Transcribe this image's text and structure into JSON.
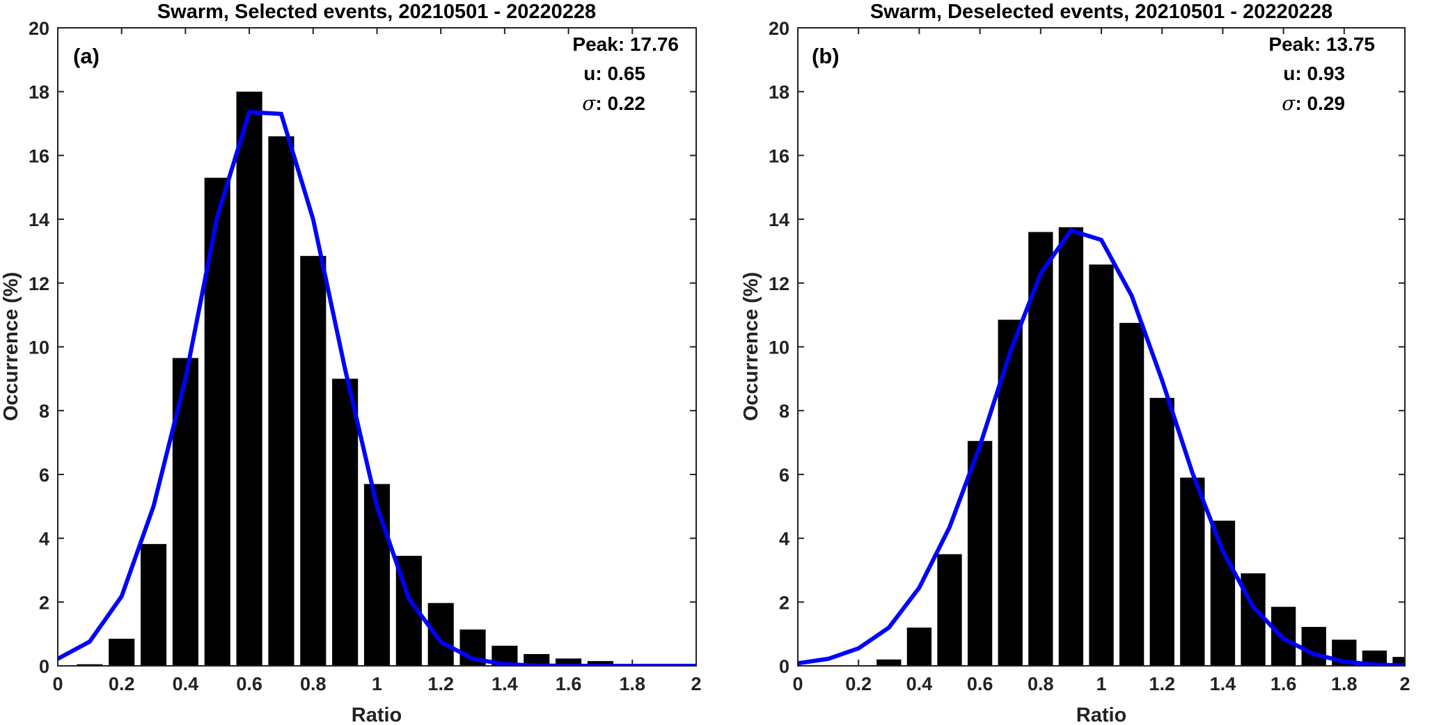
{
  "chart_data": [
    {
      "type": "bar",
      "panel": "(a)",
      "title": "Swarm, Selected events, 20210501 - 20220228",
      "xlabel": "Ratio",
      "ylabel": "Occurrence (%)",
      "xlim": [
        0,
        2
      ],
      "ylim": [
        0,
        20
      ],
      "xticks": [
        "0",
        "0.2",
        "0.4",
        "0.6",
        "0.8",
        "1",
        "1.2",
        "1.4",
        "1.6",
        "1.8",
        "2"
      ],
      "yticks": [
        "0",
        "2",
        "4",
        "6",
        "8",
        "10",
        "12",
        "14",
        "16",
        "18",
        "20"
      ],
      "stats": {
        "peak": "Peak: 17.76",
        "mu": "u: 0.65",
        "sigma_symbol": "σ",
        "sigma": ": 0.22"
      },
      "bar_color": "#000000",
      "fit_color": "#0000ff",
      "bars": {
        "x": [
          0.1,
          0.2,
          0.3,
          0.4,
          0.5,
          0.6,
          0.7,
          0.8,
          0.9,
          1.0,
          1.1,
          1.2,
          1.3,
          1.4,
          1.5,
          1.6,
          1.7,
          1.8,
          1.9
        ],
        "values": [
          0.05,
          0.85,
          3.82,
          9.65,
          15.3,
          18.0,
          16.6,
          12.85,
          9.0,
          5.7,
          3.45,
          1.97,
          1.14,
          0.63,
          0.37,
          0.23,
          0.15,
          0.04,
          0.02
        ]
      },
      "fit": {
        "x": [
          0,
          0.1,
          0.2,
          0.3,
          0.4,
          0.5,
          0.6,
          0.7,
          0.8,
          0.9,
          1.0,
          1.1,
          1.2,
          1.3,
          1.4,
          1.5,
          1.6,
          1.7,
          1.8,
          1.9,
          2.0
        ],
        "values": [
          0.22,
          0.76,
          2.18,
          5.0,
          9.0,
          14.1,
          17.36,
          17.3,
          14.0,
          9.3,
          5.0,
          2.1,
          0.75,
          0.22,
          0.05,
          0.01,
          0,
          0,
          0,
          0,
          0
        ]
      }
    },
    {
      "type": "bar",
      "panel": "(b)",
      "title": "Swarm, Deselected events, 20210501 - 20220228",
      "xlabel": "Ratio",
      "ylabel": "Occurrence (%)",
      "xlim": [
        0,
        2
      ],
      "ylim": [
        0,
        20
      ],
      "xticks": [
        "0",
        "0.2",
        "0.4",
        "0.6",
        "0.8",
        "1",
        "1.2",
        "1.4",
        "1.6",
        "1.8",
        "2"
      ],
      "yticks": [
        "0",
        "2",
        "4",
        "6",
        "8",
        "10",
        "12",
        "14",
        "16",
        "18",
        "20"
      ],
      "stats": {
        "peak": "Peak: 13.75",
        "mu": "u: 0.93",
        "sigma_symbol": "σ",
        "sigma": ": 0.29"
      },
      "bar_color": "#000000",
      "fit_color": "#0000ff",
      "bars": {
        "x": [
          0.3,
          0.4,
          0.5,
          0.6,
          0.7,
          0.8,
          0.9,
          1.0,
          1.1,
          1.2,
          1.3,
          1.4,
          1.5,
          1.6,
          1.7,
          1.8,
          1.9,
          2.0
        ],
        "values": [
          0.2,
          1.2,
          3.5,
          7.05,
          10.85,
          13.6,
          13.75,
          12.58,
          10.75,
          8.4,
          5.9,
          4.55,
          2.9,
          1.85,
          1.22,
          0.82,
          0.48,
          0.28
        ]
      },
      "fit": {
        "x": [
          0,
          0.1,
          0.2,
          0.3,
          0.4,
          0.5,
          0.6,
          0.7,
          0.8,
          0.9,
          1.0,
          1.1,
          1.2,
          1.3,
          1.4,
          1.5,
          1.6,
          1.7,
          1.8,
          1.9,
          2.0
        ],
        "values": [
          0.08,
          0.22,
          0.55,
          1.2,
          2.45,
          4.35,
          6.9,
          9.85,
          12.3,
          13.65,
          13.35,
          11.6,
          8.95,
          6.05,
          3.6,
          1.85,
          0.85,
          0.37,
          0.13,
          0.04,
          0.01
        ]
      }
    }
  ]
}
